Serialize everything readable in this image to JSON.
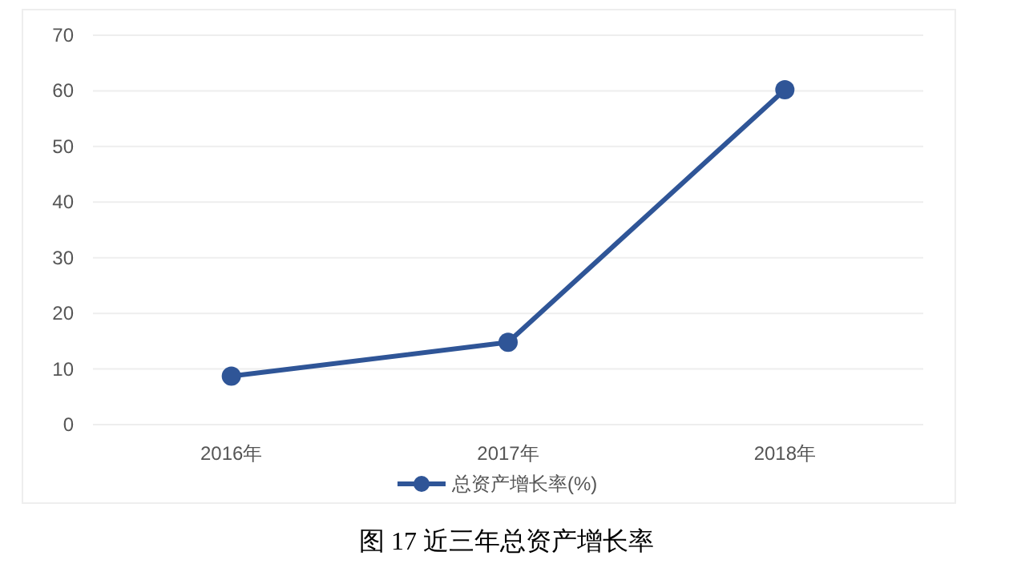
{
  "chart_data": {
    "type": "line",
    "categories": [
      "2016年",
      "2017年",
      "2018年"
    ],
    "series": [
      {
        "name": "总资产增长率(%)",
        "color": "#2f5597",
        "values": [
          8.7,
          14.8,
          60.2
        ]
      }
    ],
    "ylim": [
      0,
      70
    ],
    "yticks": [
      0,
      10,
      20,
      30,
      40,
      50,
      60,
      70
    ],
    "grid": "y",
    "legend": "bottom",
    "marker": "circle",
    "line_style": "solid",
    "annotations": [
      "图 17 近三年总资产增长率"
    ]
  }
}
